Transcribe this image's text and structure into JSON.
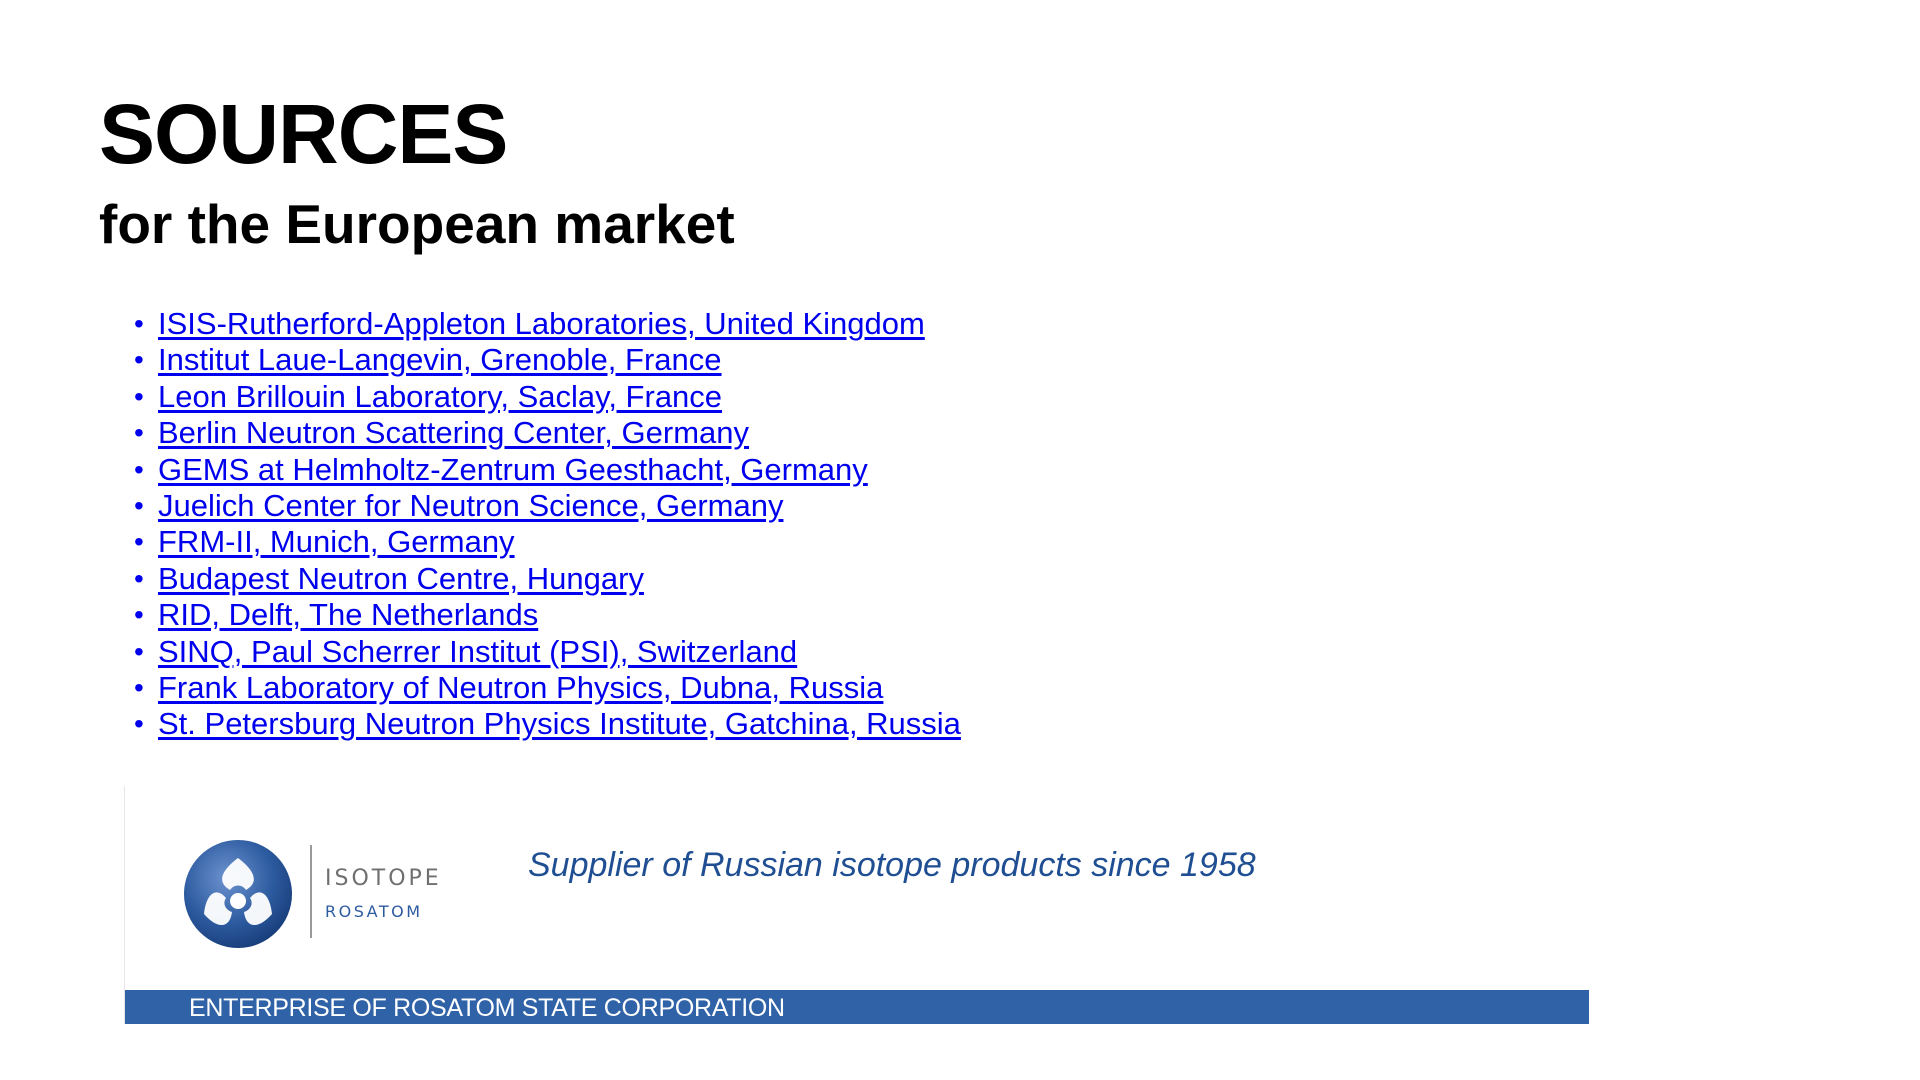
{
  "header": {
    "title": "SOURCES",
    "subtitle": "for the European market"
  },
  "sources": [
    "ISIS-Rutherford-Appleton Laboratories, United Kingdom",
    "Institut Laue-Langevin, Grenoble, France",
    "Leon Brillouin Laboratory, Saclay, France",
    "Berlin Neutron Scattering Center, Germany",
    "GEMS at Helmholtz-Zentrum Geesthacht, Germany",
    "Juelich Center for Neutron Science, Germany",
    "FRM-II, Munich, Germany",
    "Budapest Neutron Centre, Hungary",
    "RID, Delft, The Netherlands",
    "SINQ, Paul Scherrer Institut (PSI), Switzerland",
    "Frank Laboratory of Neutron Physics, Dubna, Russia",
    "St. Petersburg Neutron Physics Institute, Gatchina, Russia"
  ],
  "banner": {
    "brand_name": "ISOTOPE",
    "brand_sub": "ROSATOM",
    "tagline": "Supplier of Russian isotope products since 1958",
    "strip_text": "ENTERPRISE OF ROSATOM STATE CORPORATION",
    "logo_icon": "rosatom-atom-logo-icon",
    "colors": {
      "strip": "#2f62a6",
      "tagline": "#1f4f92",
      "logo": "#2d5ba0",
      "link": "#0000ee"
    }
  }
}
